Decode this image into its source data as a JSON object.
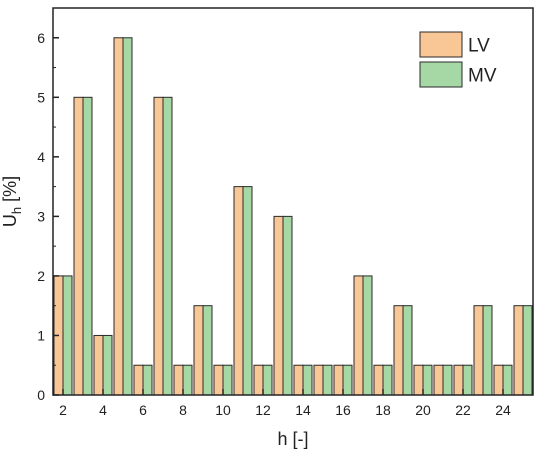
{
  "chart_data": {
    "type": "bar",
    "x": [
      2,
      3,
      4,
      5,
      6,
      7,
      8,
      9,
      10,
      11,
      12,
      13,
      14,
      15,
      16,
      17,
      18,
      19,
      20,
      21,
      22,
      23,
      24,
      25
    ],
    "series": [
      {
        "name": "LV",
        "values": [
          2,
          5,
          1,
          6,
          0.5,
          5,
          0.5,
          1.5,
          0.5,
          3.5,
          0.5,
          3,
          0.5,
          0.5,
          0.5,
          2,
          0.5,
          1.5,
          0.5,
          0.5,
          0.5,
          1.5,
          0.5,
          1.5
        ]
      },
      {
        "name": "MV",
        "values": [
          2,
          5,
          1,
          6,
          0.5,
          5,
          0.5,
          1.5,
          0.5,
          3.5,
          0.5,
          3,
          0.5,
          0.5,
          0.5,
          2,
          0.5,
          1.5,
          0.5,
          0.5,
          0.5,
          1.5,
          0.5,
          1.5
        ]
      }
    ],
    "xticks": [
      2,
      4,
      6,
      8,
      10,
      12,
      14,
      16,
      18,
      20,
      22,
      24
    ],
    "yticks": [
      0,
      1,
      2,
      3,
      4,
      5,
      6
    ],
    "xlim": [
      1.5,
      25.5
    ],
    "ylim": [
      0,
      6.5
    ],
    "xlabel": "h [-]",
    "ylabel_main": "U",
    "ylabel_sub": "h",
    "ylabel_suffix": " [%]",
    "legend_position": "top-right",
    "grid": false,
    "colors": {
      "LV": "#f9c796",
      "MV": "#a6d8a6",
      "edge": "#2a2a2a",
      "axis": "#222222"
    }
  }
}
